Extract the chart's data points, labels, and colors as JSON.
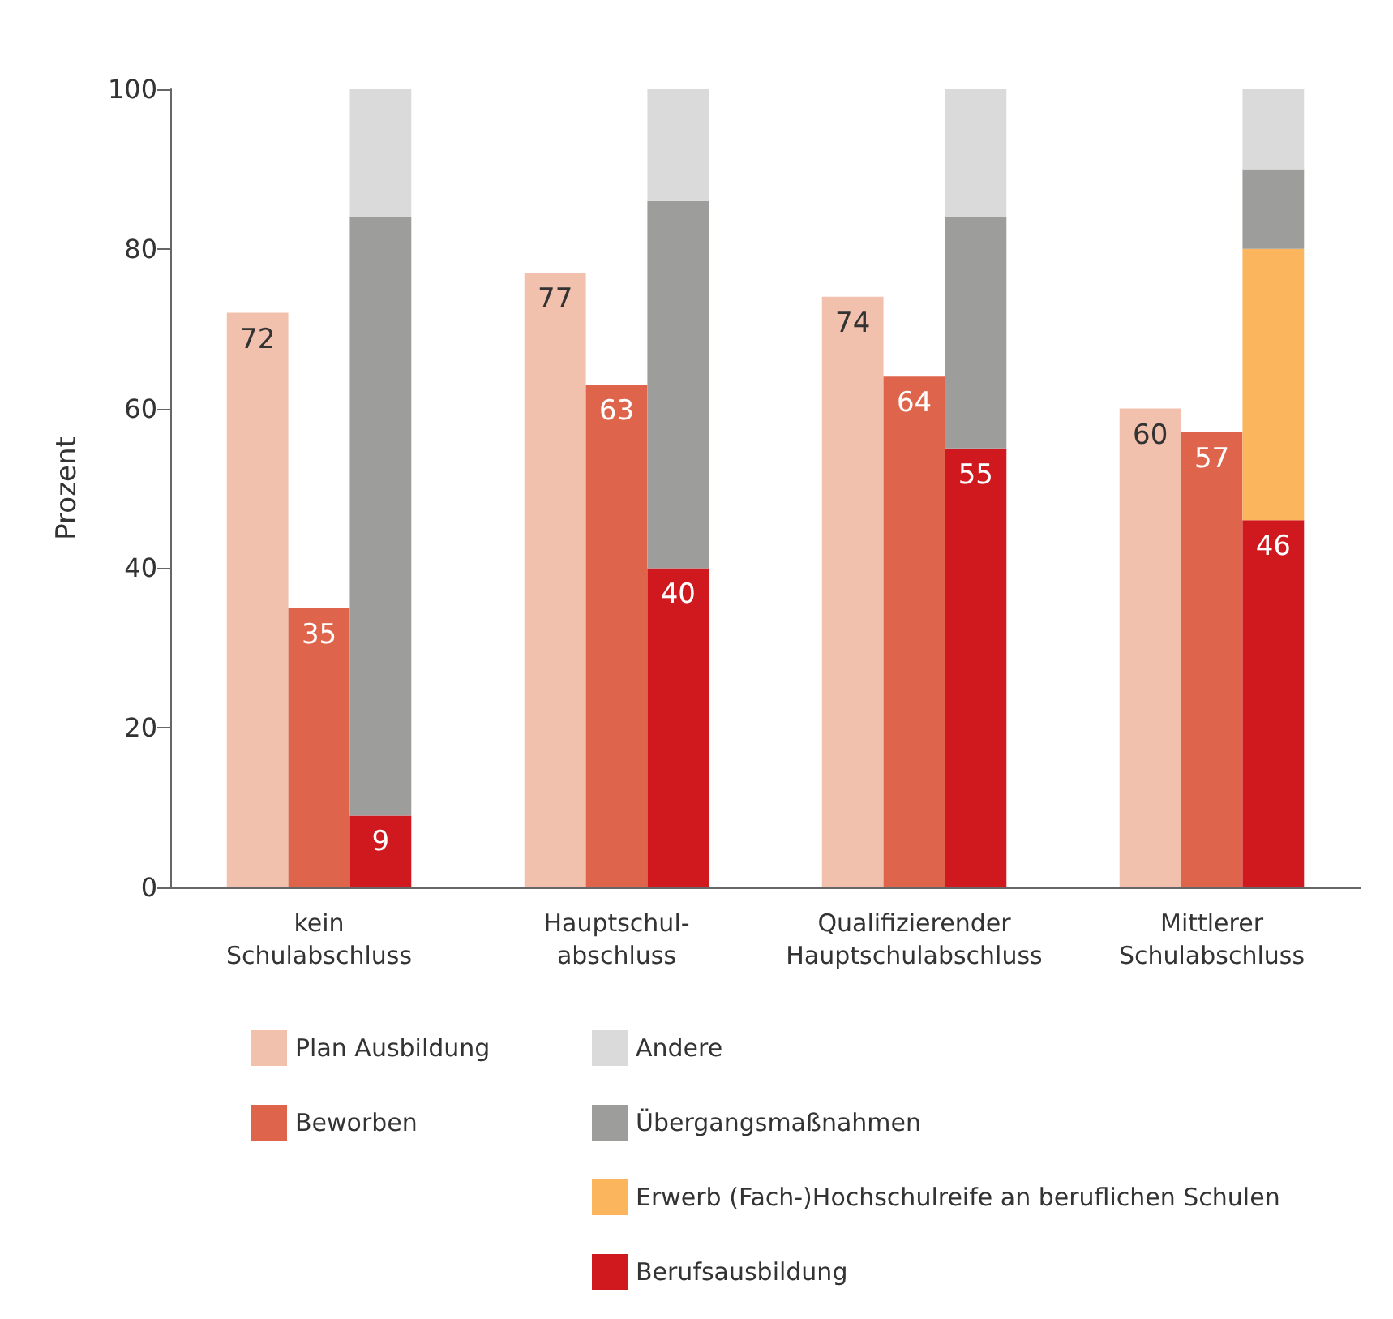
{
  "chart_data": {
    "type": "bar",
    "ylabel": "Prozent",
    "categories": [
      "kein\nSchulabschluss",
      "Hauptschul-\nabschluss",
      "Qualifizierender\nHauptschulabschluss",
      "Mittlerer\nSchulabschluss"
    ],
    "ylim": [
      0,
      100
    ],
    "yticks": [
      0,
      20,
      40,
      60,
      80,
      100
    ],
    "grid": false,
    "legend": "bottom",
    "series": [
      {
        "name": "Plan Ausbildung",
        "color": "#f2c1ae",
        "values": [
          72,
          77,
          74,
          60
        ],
        "value_labels": [
          "72",
          "77",
          "74",
          "60"
        ]
      },
      {
        "name": "Beworben",
        "color": "#de654c",
        "values": [
          35,
          63,
          64,
          57
        ],
        "value_labels": [
          "35",
          "63",
          "64",
          "57"
        ]
      },
      {
        "name": "Berufsausbildung",
        "color": "#d0191f",
        "base": [
          0,
          0,
          0,
          0
        ],
        "values": [
          9,
          40,
          55,
          46
        ],
        "value_labels": [
          "9",
          "40",
          "55",
          "46"
        ]
      },
      {
        "name": "Erwerb (Fach-)Hochschulreife an beruflichen Schulen",
        "color": "#fbb55c",
        "base": [
          null,
          null,
          null,
          46
        ],
        "values": [
          null,
          null,
          null,
          34
        ]
      },
      {
        "name": "Übergangsmaßnahmen",
        "color": "#9d9d9b",
        "base": [
          9,
          40,
          55,
          80
        ],
        "values": [
          75,
          46,
          29,
          10
        ]
      },
      {
        "name": "Andere",
        "color": "#dadada",
        "base": [
          84,
          86,
          84,
          90
        ],
        "values": [
          16,
          14,
          16,
          10
        ]
      }
    ]
  }
}
